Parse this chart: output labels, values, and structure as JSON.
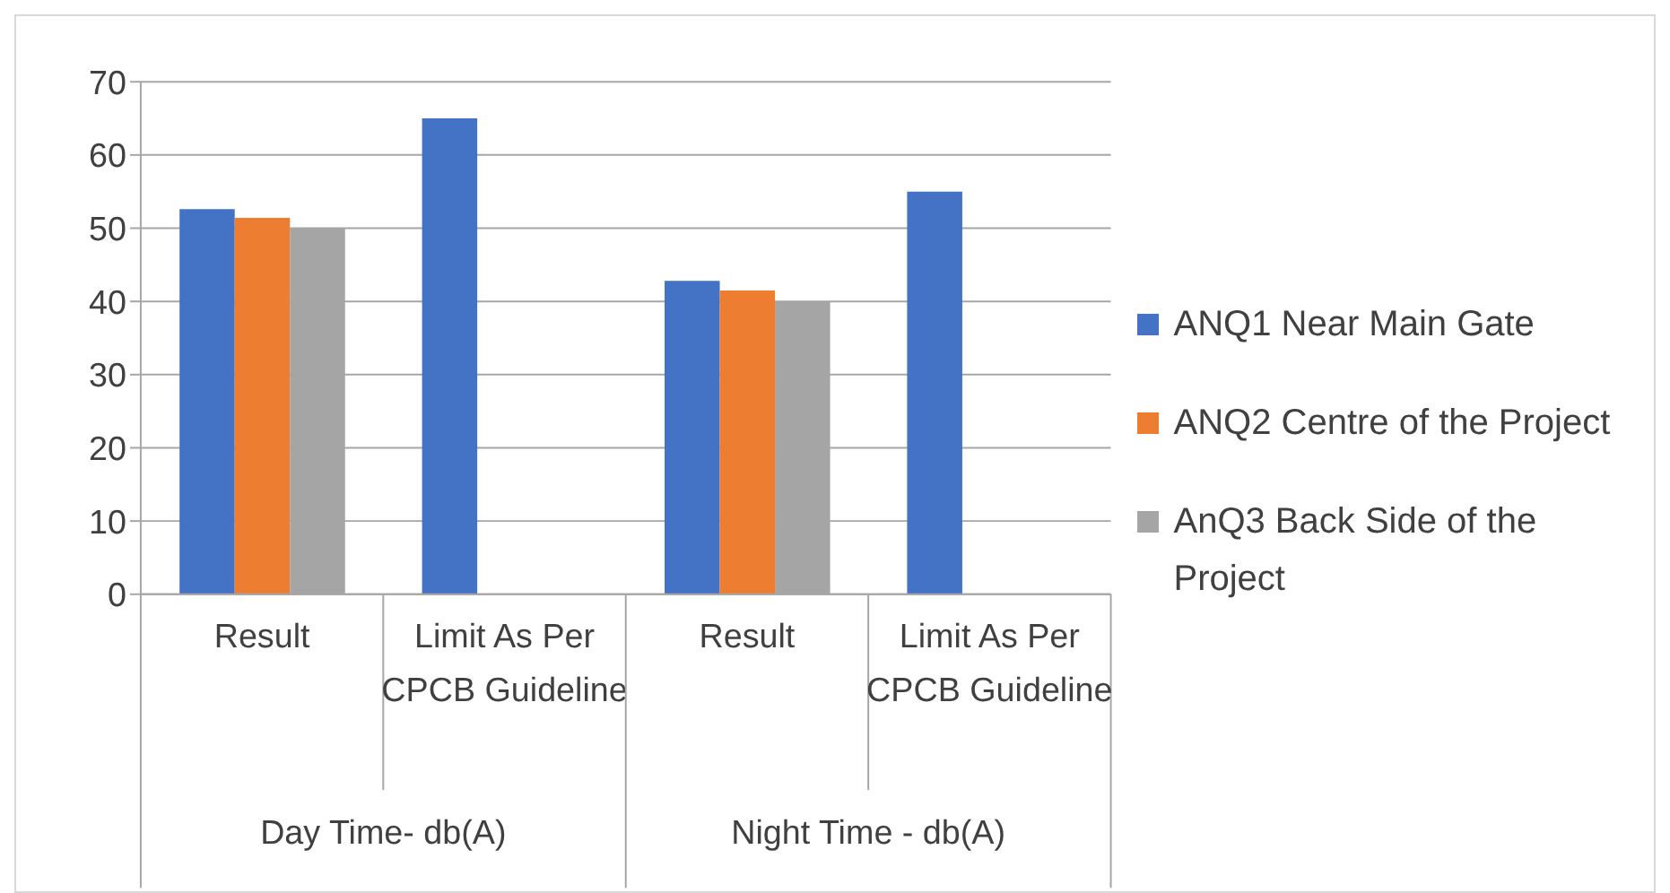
{
  "chart_data": {
    "type": "bar",
    "categories": [
      "Result",
      "Limit As Per CPCB Guideline",
      "Result",
      "Limit As Per CPCB Guideline"
    ],
    "series": [
      {
        "name": "ANQ1 Near Main Gate",
        "color": "#4472c4",
        "values": [
          52.6,
          65,
          42.8,
          55
        ]
      },
      {
        "name": "ANQ2 Centre of the Project",
        "color": "#ed7d31",
        "values": [
          51.4,
          null,
          41.5,
          null
        ]
      },
      {
        "name": "AnQ3 Back Side of the Project",
        "color": "#a5a5a5",
        "values": [
          50,
          null,
          40,
          null
        ]
      }
    ],
    "annotations": [
      "Day Time- db(A)",
      "Night Time - db(A)"
    ],
    "ylim": [
      0,
      70
    ],
    "yticks": [
      0,
      10,
      20,
      30,
      40,
      50,
      60,
      70
    ],
    "grid": "y",
    "legend": "right"
  }
}
